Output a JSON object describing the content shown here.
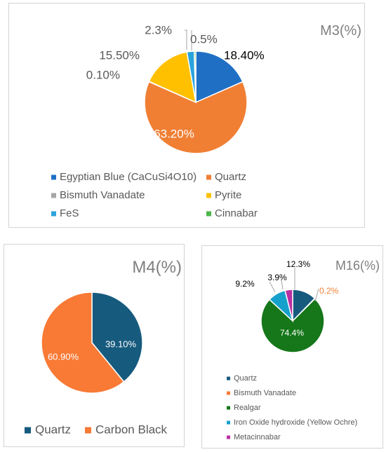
{
  "chart_data": [
    {
      "type": "pie",
      "title": "M3(%)",
      "labels": [
        "Egyptian Blue (CaCuSi4O10)",
        "Quartz",
        "Bismuth Vanadate",
        "Pyrite",
        "FeS",
        "Cinnabar"
      ],
      "values": [
        18.4,
        63.2,
        0.1,
        15.5,
        2.3,
        0.5
      ],
      "value_labels": [
        "18.40%",
        "63.20%",
        "0.10%",
        "15.50%",
        "2.3%",
        "0.5%"
      ],
      "colors": [
        "#1f6fc5",
        "#f07f34",
        "#a5a5a5",
        "#ffc000",
        "#2aa3dc",
        "#4cb548"
      ],
      "legend_position": "bottom"
    },
    {
      "type": "pie",
      "title": "M4(%)",
      "labels": [
        "Quartz",
        "Carbon Black"
      ],
      "values": [
        39.1,
        60.9
      ],
      "value_labels": [
        "39.10%",
        "60.90%"
      ],
      "colors": [
        "#165a7e",
        "#f87a35"
      ],
      "legend_position": "bottom"
    },
    {
      "type": "pie",
      "title": "M16(%)",
      "labels": [
        "Quartz",
        "Bismuth Vanadate",
        "Realgar",
        "Iron Oxide hydroxide (Yellow Ochre)",
        "Metacinnabar"
      ],
      "values": [
        12.3,
        0.2,
        74.4,
        9.2,
        3.9
      ],
      "value_labels": [
        "12.3%",
        "0.2%",
        "74.4%",
        "9.2%",
        "3.9%"
      ],
      "colors": [
        "#165a7e",
        "#f87a35",
        "#157719",
        "#16a0cc",
        "#ba2fa3"
      ],
      "legend_position": "bottom"
    }
  ]
}
